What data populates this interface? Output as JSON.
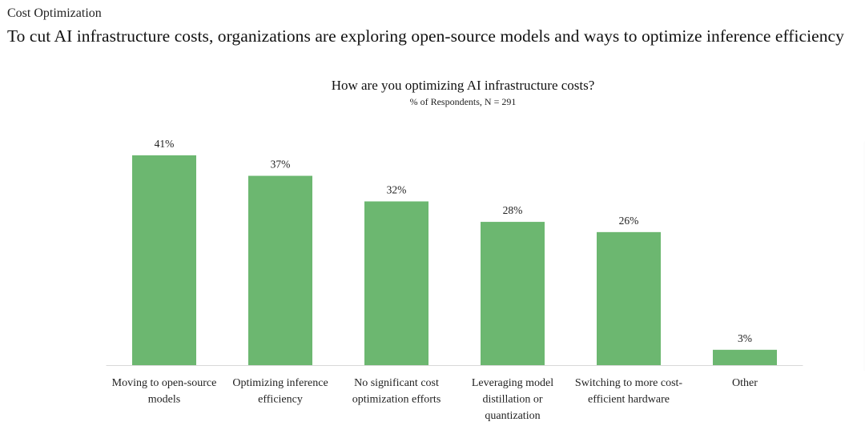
{
  "header": {
    "section_label": "Cost Optimization",
    "headline": "To cut AI infrastructure costs, organizations are exploring open-source models and ways to optimize inference efficiency"
  },
  "chart_data": {
    "type": "bar",
    "title": "How are you optimizing AI infrastructure costs?",
    "subtitle": "% of Respondents, N = 291",
    "categories": [
      [
        "Moving to open-source",
        "models"
      ],
      [
        "Optimizing inference",
        "efficiency"
      ],
      [
        "No significant cost",
        "optimization efforts"
      ],
      [
        "Leveraging model",
        "distillation or",
        "quantization"
      ],
      [
        "Switching to more cost-",
        "efficient hardware"
      ],
      [
        "Other"
      ]
    ],
    "values": [
      41,
      37,
      32,
      28,
      26,
      3
    ],
    "value_labels": [
      "41%",
      "37%",
      "32%",
      "28%",
      "26%",
      "3%"
    ],
    "unit": "%",
    "xlabel": "",
    "ylabel": "",
    "ylim": [
      0,
      41
    ],
    "grid": false,
    "legend": "none",
    "bar_color": "#6cb770",
    "baseline_color": "#d9d9d9"
  }
}
